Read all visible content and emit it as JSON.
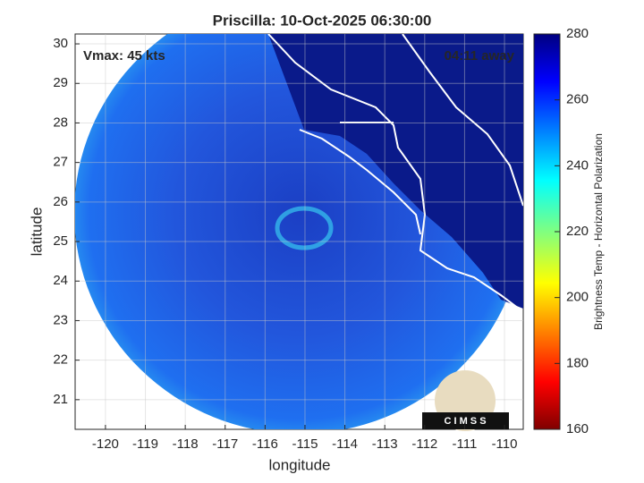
{
  "chart_data": {
    "type": "map",
    "title": "Priscilla: 10-Oct-2025 06:30:00",
    "annotations": [
      "Vmax: 45 kts",
      "04:11 away"
    ],
    "logo_text": "C I M S S",
    "x_label": "longitude",
    "y_label": "latitude",
    "xlim": [
      -120.76,
      -109.53
    ],
    "ylim": [
      20.25,
      30.25
    ],
    "xticks": [
      -120,
      -119,
      -118,
      -117,
      -116,
      -115,
      -114,
      -113,
      -112,
      -111,
      -110
    ],
    "yticks": [
      21,
      22,
      23,
      24,
      25,
      26,
      27,
      28,
      29,
      30
    ],
    "grid": true,
    "colorbar": {
      "label": "Brightness Temp - Horizontal Polarization",
      "lim": [
        160,
        280
      ],
      "ticks": [
        160,
        180,
        200,
        220,
        240,
        260,
        280
      ]
    }
  }
}
